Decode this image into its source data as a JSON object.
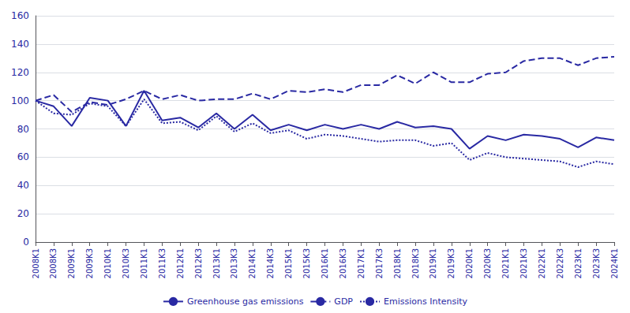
{
  "chart_data": {
    "type": "line",
    "categories": [
      "2008K1",
      "2008K3",
      "2009K1",
      "2009K3",
      "2010K1",
      "2010K3",
      "2011K1",
      "2011K3",
      "2012K1",
      "2012K3",
      "2013K1",
      "2013K3",
      "2014K1",
      "2014K3",
      "2015K1",
      "2015K3",
      "2016K1",
      "2016K3",
      "2017K1",
      "2017K3",
      "2018K1",
      "2018K3",
      "2019K1",
      "2019K3",
      "2020K1",
      "2020K3",
      "2021K1",
      "2021K3",
      "2022K1",
      "2022K3",
      "2023K1",
      "2023K3",
      "2024K1"
    ],
    "series": [
      {
        "name": "Greenhouse gas emissions",
        "color": "#2929a3",
        "line_style": "solid",
        "values": [
          100,
          96,
          82,
          102,
          100,
          82,
          107,
          86,
          88,
          81,
          91,
          80,
          90,
          79,
          83,
          79,
          83,
          80,
          83,
          80,
          85,
          81,
          82,
          80,
          66,
          75,
          72,
          76,
          75,
          73,
          67,
          74,
          72
        ]
      },
      {
        "name": "GDP",
        "color": "#2929a3",
        "line_style": "dashed",
        "values": [
          100,
          104,
          92,
          99,
          97,
          101,
          107,
          101,
          104,
          100,
          101,
          101,
          105,
          101,
          107,
          106,
          108,
          106,
          111,
          111,
          118,
          112,
          120,
          113,
          113,
          119,
          120,
          128,
          130,
          130,
          125,
          130,
          131
        ]
      },
      {
        "name": "Emissions Intensity",
        "color": "#2929a3",
        "line_style": "dotted",
        "values": [
          100,
          91,
          90,
          98,
          96,
          82,
          101,
          84,
          85,
          79,
          89,
          78,
          84,
          77,
          79,
          73,
          76,
          75,
          73,
          71,
          72,
          72,
          68,
          70,
          58,
          63,
          60,
          59,
          58,
          57,
          53,
          57,
          55
        ]
      }
    ],
    "ylim": [
      0,
      160
    ],
    "yticks": [
      0,
      20,
      40,
      60,
      80,
      100,
      120,
      140,
      160
    ],
    "grid": true,
    "legend": "bottom"
  }
}
